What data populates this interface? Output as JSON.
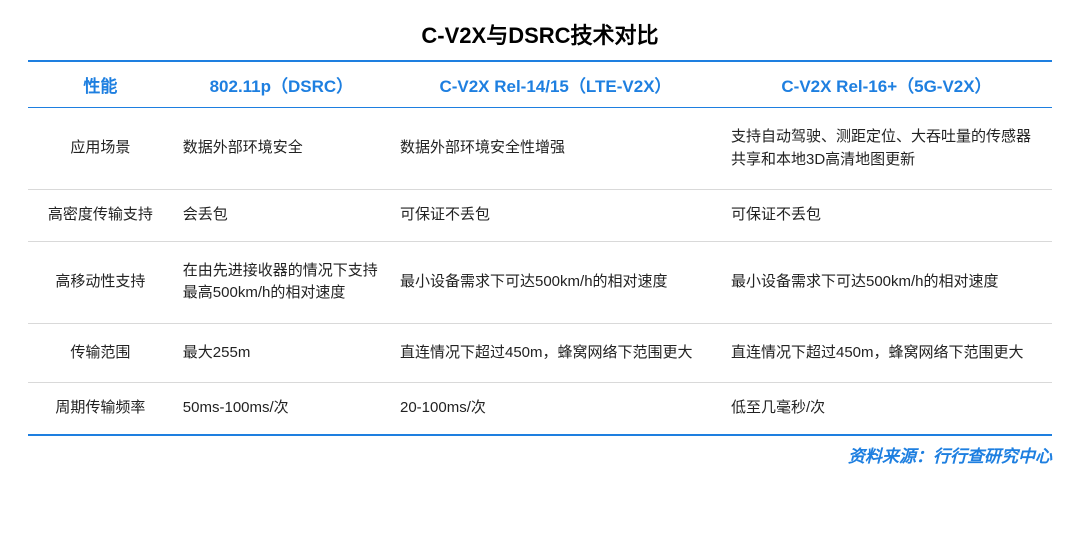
{
  "title": "C-V2X与DSRC技术对比",
  "columns": [
    "性能",
    "802.11p（DSRC）",
    "C-V2X Rel-14/15（LTE-V2X）",
    "C-V2X Rel-16+（5G-V2X）"
  ],
  "rows": [
    {
      "label": "应用场景",
      "c1": "数据外部环境安全",
      "c2": "数据外部环境安全性增强",
      "c3": "支持自动驾驶、测距定位、大吞吐量的传感器共享和本地3D高清地图更新"
    },
    {
      "label": "高密度传输支持",
      "c1": "会丢包",
      "c2": "可保证不丢包",
      "c3": "可保证不丢包"
    },
    {
      "label": "高移动性支持",
      "c1": "在由先进接收器的情况下支持最高500km/h的相对速度",
      "c2": "最小设备需求下可达500km/h的相对速度",
      "c3": "最小设备需求下可达500km/h的相对速度"
    },
    {
      "label": "传输范围",
      "c1": "最大255m",
      "c2": "直连情况下超过450m，蜂窝网络下范围更大",
      "c3": "直连情况下超过450m，蜂窝网络下范围更大"
    },
    {
      "label": "周期传输频率",
      "c1": "50ms-100ms/次",
      "c2": "20-100ms/次",
      "c3": "低至几毫秒/次"
    }
  ],
  "source": "资料来源：行行查研究中心",
  "colors": {
    "accent": "#1e7fe0",
    "text": "#222222",
    "divider": "#d9d9d9",
    "background": "#ffffff"
  }
}
